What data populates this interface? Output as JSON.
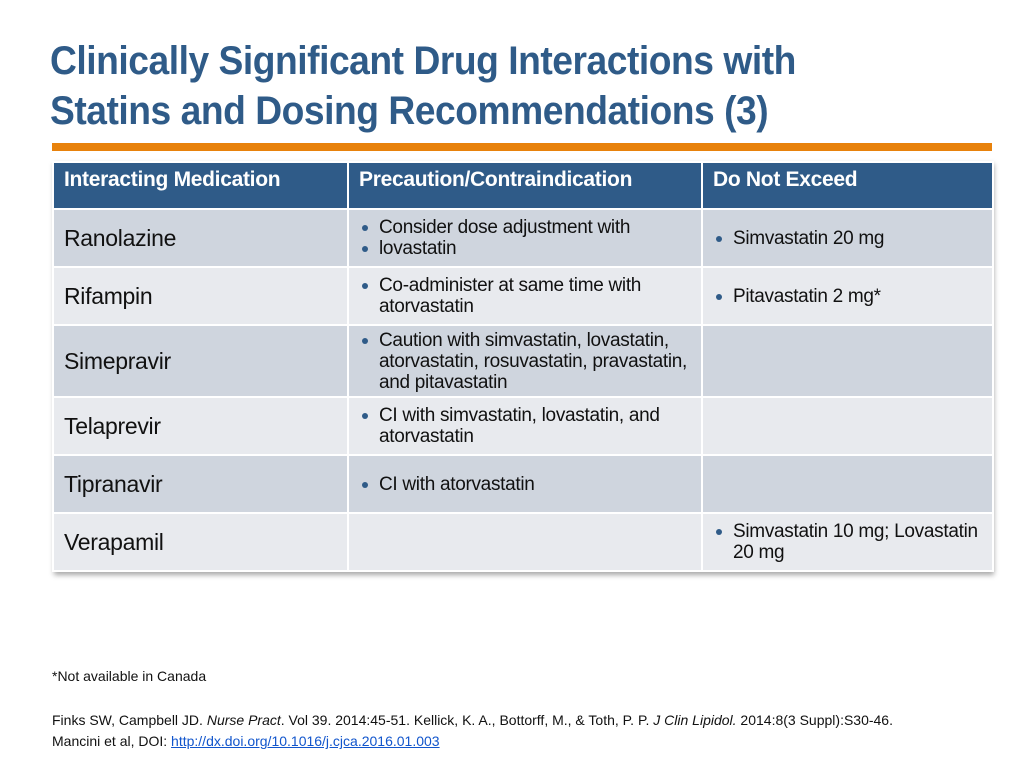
{
  "slide": {
    "title": "Clinically Significant Drug Interactions with Statins and Dosing Recommendations (3)",
    "colors": {
      "title": "#2f5b88",
      "accent_rule": "#e8820c",
      "header_bg": "#2f5b88",
      "row_dark": "#cfd5de",
      "row_light": "#e8eaee"
    }
  },
  "table": {
    "headers": [
      "Interacting Medication",
      "Precaution/Contraindication",
      "Do Not Exceed"
    ],
    "rows": [
      {
        "medication": "Ranolazine",
        "precautions": [
          "Consider dose adjustment with",
          "lovastatin"
        ],
        "limits": [
          "Simvastatin 20 mg"
        ]
      },
      {
        "medication": "Rifampin",
        "precautions": [
          "Co-administer at same time with atorvastatin"
        ],
        "limits": [
          "Pitavastatin 2 mg*"
        ]
      },
      {
        "medication": "Simepravir",
        "precautions": [
          "Caution with simvastatin, lovastatin, atorvastatin, rosuvastatin, pravastatin, and pitavastatin"
        ],
        "limits": []
      },
      {
        "medication": "Telaprevir",
        "precautions": [
          "CI with simvastatin, lovastatin, and atorvastatin"
        ],
        "limits": []
      },
      {
        "medication": "Tipranavir",
        "precautions": [
          "CI with atorvastatin"
        ],
        "limits": []
      },
      {
        "medication": "Verapamil",
        "precautions": [],
        "limits": [
          "Simvastatin 10 mg; Lovastatin 20 mg"
        ]
      }
    ]
  },
  "footnote": "*Not available in Canada",
  "references": {
    "line1_a": "Finks SW, Campbell JD. ",
    "line1_journal1": "Nurse Pract",
    "line1_b": ". Vol 39. 2014:45-51. Kellick, K. A., Bottorff, M., & Toth, P. P. ",
    "line1_journal2": "J Clin Lipidol.",
    "line1_c": " 2014:8(3 Suppl):S30-46.",
    "line2_a": "Mancini et al, DOI: ",
    "line2_link": "http://dx.doi.org/10.1016/j.cjca.2016.01.003"
  }
}
